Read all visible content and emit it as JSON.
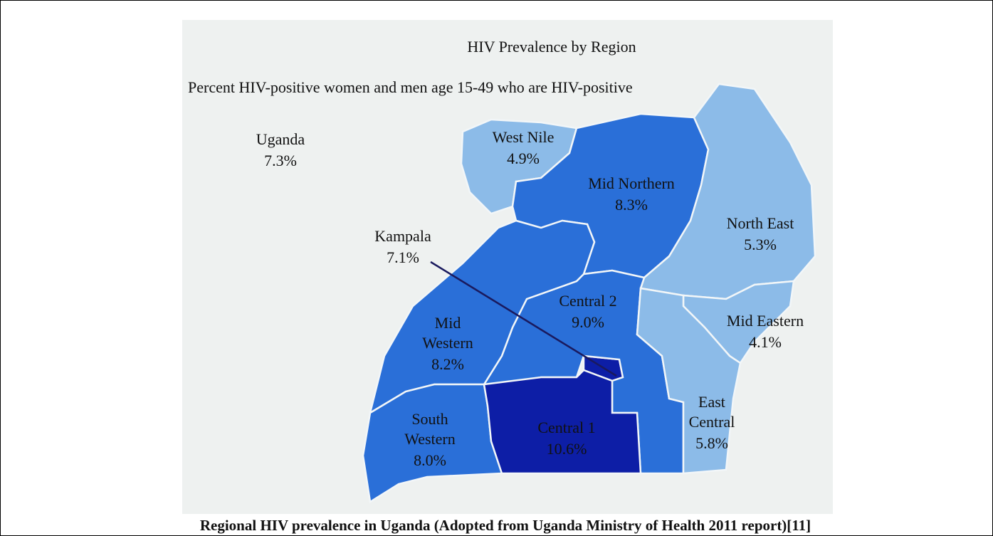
{
  "map": {
    "title": "HIV Prevalence by Region",
    "subtitle": "Percent HIV-positive women and men age 15-49 who are HIV-positive",
    "national": {
      "name": "Uganda",
      "value": "7.3%"
    },
    "regions": [
      {
        "name_lines": [
          "West Nile"
        ],
        "value": "4.9%"
      },
      {
        "name_lines": [
          "Mid Northern"
        ],
        "value": "8.3%"
      },
      {
        "name_lines": [
          "North East"
        ],
        "value": "5.3%"
      },
      {
        "name_lines": [
          "Kampala"
        ],
        "value": "7.1%"
      },
      {
        "name_lines": [
          "Central 2"
        ],
        "value": "9.0%"
      },
      {
        "name_lines": [
          "Mid Eastern"
        ],
        "value": "4.1%"
      },
      {
        "name_lines": [
          "Mid",
          "Western"
        ],
        "value": "8.2%"
      },
      {
        "name_lines": [
          "East",
          "Central"
        ],
        "value": "5.8%"
      },
      {
        "name_lines": [
          "South",
          "Western"
        ],
        "value": "8.0%"
      },
      {
        "name_lines": [
          "Central 1"
        ],
        "value": "10.6%"
      }
    ]
  },
  "caption": "Regional HIV prevalence in Uganda (Adopted from Uganda Ministry of Health 2011 report)[11]"
}
